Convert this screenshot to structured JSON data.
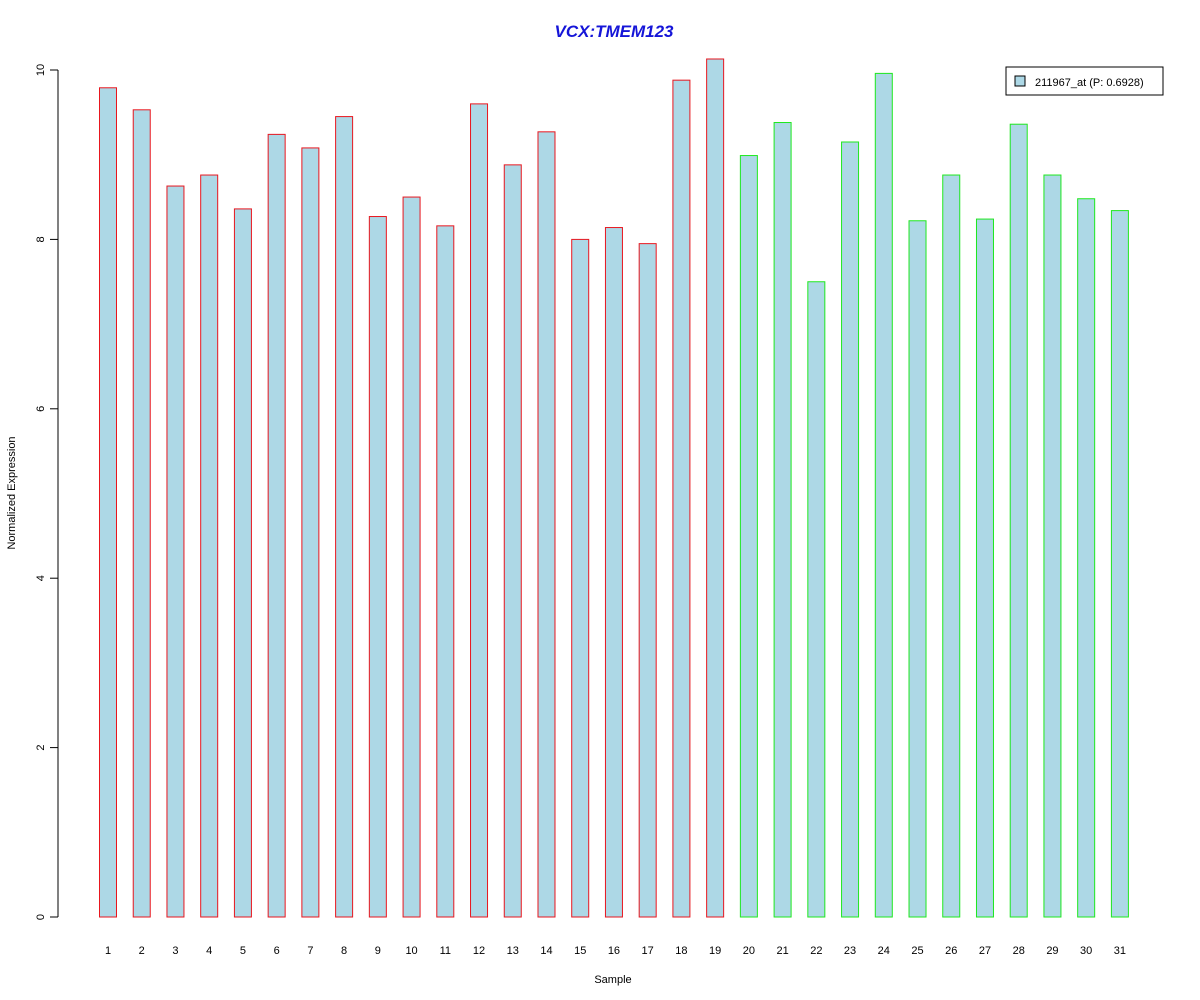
{
  "chart_data": {
    "type": "bar",
    "title": "VCX:TMEM123",
    "xlabel": "Sample",
    "ylabel": "Normalized Expression",
    "ylim": [
      0,
      10
    ],
    "yticks": [
      0,
      2,
      4,
      6,
      8,
      10
    ],
    "categories": [
      "1",
      "2",
      "3",
      "4",
      "5",
      "6",
      "7",
      "8",
      "9",
      "10",
      "11",
      "12",
      "13",
      "14",
      "15",
      "16",
      "17",
      "18",
      "19",
      "20",
      "21",
      "22",
      "23",
      "24",
      "25",
      "26",
      "27",
      "28",
      "29",
      "30",
      "31"
    ],
    "values": [
      9.79,
      9.53,
      8.63,
      8.76,
      8.36,
      9.24,
      9.08,
      9.45,
      8.27,
      8.5,
      8.16,
      9.6,
      8.88,
      9.27,
      8.0,
      8.14,
      7.95,
      9.88,
      10.13,
      8.99,
      9.38,
      7.5,
      9.15,
      9.96,
      8.22,
      8.76,
      8.24,
      9.36,
      8.76,
      8.48,
      8.34
    ],
    "groups": [
      "red",
      "red",
      "red",
      "red",
      "red",
      "red",
      "red",
      "red",
      "red",
      "red",
      "red",
      "red",
      "red",
      "red",
      "red",
      "red",
      "red",
      "red",
      "red",
      "green",
      "green",
      "green",
      "green",
      "green",
      "green",
      "green",
      "green",
      "green",
      "green",
      "green",
      "green"
    ],
    "series": [
      {
        "name": "211967_at (P: 0.6928)",
        "values": [
          9.79,
          9.53,
          8.63,
          8.76,
          8.36,
          9.24,
          9.08,
          9.45,
          8.27,
          8.5,
          8.16,
          9.6,
          8.88,
          9.27,
          8.0,
          8.14,
          7.95,
          9.88,
          10.13,
          8.99,
          9.38,
          7.5,
          9.15,
          9.96,
          8.22,
          8.76,
          8.24,
          9.36,
          8.76,
          8.48,
          8.34
        ]
      }
    ],
    "legend": {
      "label": "211967_at (P: 0.6928)",
      "position": "top-right"
    },
    "grid": false
  },
  "colors": {
    "bar_fill": "#add8e6",
    "group_red_border": "#e8161e",
    "group_green_border": "#1ee81e",
    "title": "#1515d8",
    "axis": "#000000"
  }
}
